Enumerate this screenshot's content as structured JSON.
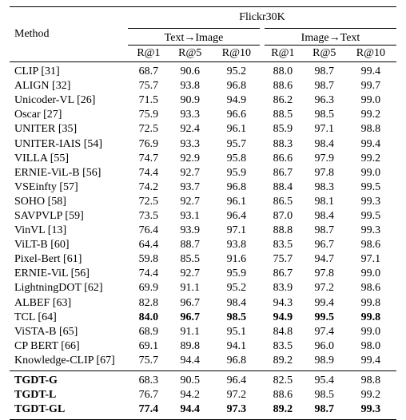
{
  "header": {
    "method": "Method",
    "dataset": "Flickr30K",
    "t2i": "Text→Image",
    "i2t": "Image→Text",
    "metrics": [
      "R@1",
      "R@5",
      "R@10",
      "R@1",
      "R@5",
      "R@10"
    ]
  },
  "rows": [
    {
      "method": "CLIP [31]",
      "vals": [
        "68.7",
        "90.6",
        "95.2",
        "88.0",
        "98.7",
        "99.4"
      ]
    },
    {
      "method": "ALIGN [32]",
      "vals": [
        "75.7",
        "93.8",
        "96.8",
        "88.6",
        "98.7",
        "99.7"
      ]
    },
    {
      "method": "Unicoder-VL [26]",
      "vals": [
        "71.5",
        "90.9",
        "94.9",
        "86.2",
        "96.3",
        "99.0"
      ]
    },
    {
      "method": "Oscar [27]",
      "vals": [
        "75.9",
        "93.3",
        "96.6",
        "88.5",
        "98.5",
        "99.2"
      ]
    },
    {
      "method": "UNITER [35]",
      "vals": [
        "72.5",
        "92.4",
        "96.1",
        "85.9",
        "97.1",
        "98.8"
      ]
    },
    {
      "method": "UNITER-IAIS [54]",
      "vals": [
        "76.9",
        "93.3",
        "95.7",
        "88.3",
        "98.4",
        "99.4"
      ]
    },
    {
      "method": "VILLA [55]",
      "vals": [
        "74.7",
        "92.9",
        "95.8",
        "86.6",
        "97.9",
        "99.2"
      ]
    },
    {
      "method": "ERNIE-ViL-B [56]",
      "vals": [
        "74.4",
        "92.7",
        "95.9",
        "86.7",
        "97.8",
        "99.0"
      ]
    },
    {
      "method": "VSEinfty [57]",
      "vals": [
        "74.2",
        "93.7",
        "96.8",
        "88.4",
        "98.3",
        "99.5"
      ]
    },
    {
      "method": "SOHO [58]",
      "vals": [
        "72.5",
        "92.7",
        "96.1",
        "86.5",
        "98.1",
        "99.3"
      ]
    },
    {
      "method": "SAVPVLP [59]",
      "vals": [
        "73.5",
        "93.1",
        "96.4",
        "87.0",
        "98.4",
        "99.5"
      ]
    },
    {
      "method": "VinVL [13]",
      "vals": [
        "76.4",
        "93.9",
        "97.1",
        "88.8",
        "98.7",
        "99.3"
      ]
    },
    {
      "method": "ViLT-B [60]",
      "vals": [
        "64.4",
        "88.7",
        "93.8",
        "83.5",
        "96.7",
        "98.6"
      ]
    },
    {
      "method": "Pixel-Bert [61]",
      "vals": [
        "59.8",
        "85.5",
        "91.6",
        "75.7",
        "94.7",
        "97.1"
      ]
    },
    {
      "method": "ERNIE-ViL [56]",
      "vals": [
        "74.4",
        "92.7",
        "95.9",
        "86.7",
        "97.8",
        "99.0"
      ]
    },
    {
      "method": "LightningDOT [62]",
      "vals": [
        "69.9",
        "91.1",
        "95.2",
        "83.9",
        "97.2",
        "98.6"
      ]
    },
    {
      "method": "ALBEF [63]",
      "vals": [
        "82.8",
        "96.7",
        "98.4",
        "94.3",
        "99.4",
        "99.8"
      ]
    },
    {
      "method": "TCL [64]",
      "vals": [
        "84.0",
        "96.7",
        "98.5",
        "94.9",
        "99.5",
        "99.8"
      ],
      "bold": [
        true,
        true,
        true,
        true,
        true,
        true
      ]
    },
    {
      "method": "ViSTA-B [65]",
      "vals": [
        "68.9",
        "91.1",
        "95.1",
        "84.8",
        "97.4",
        "99.0"
      ]
    },
    {
      "method": "CP BERT [66]",
      "vals": [
        "69.1",
        "89.8",
        "94.1",
        "83.5",
        "96.0",
        "98.0"
      ]
    },
    {
      "method": "Knowledge-CLIP [67]",
      "vals": [
        "75.7",
        "94.4",
        "96.8",
        "89.2",
        "98.9",
        "99.4"
      ]
    }
  ],
  "ours": [
    {
      "method": "TGDT-G",
      "vals": [
        "68.3",
        "90.5",
        "96.4",
        "82.5",
        "95.4",
        "98.8"
      ],
      "bold": [
        false,
        false,
        false,
        false,
        false,
        false
      ]
    },
    {
      "method": "TGDT-L",
      "vals": [
        "76.7",
        "94.2",
        "97.2",
        "88.6",
        "98.5",
        "99.2"
      ],
      "bold": [
        false,
        false,
        false,
        false,
        false,
        false
      ]
    },
    {
      "method": "TGDT-GL",
      "vals": [
        "77.4",
        "94.4",
        "97.3",
        "89.2",
        "98.7",
        "99.3"
      ],
      "bold": [
        true,
        true,
        true,
        true,
        true,
        true
      ]
    }
  ]
}
